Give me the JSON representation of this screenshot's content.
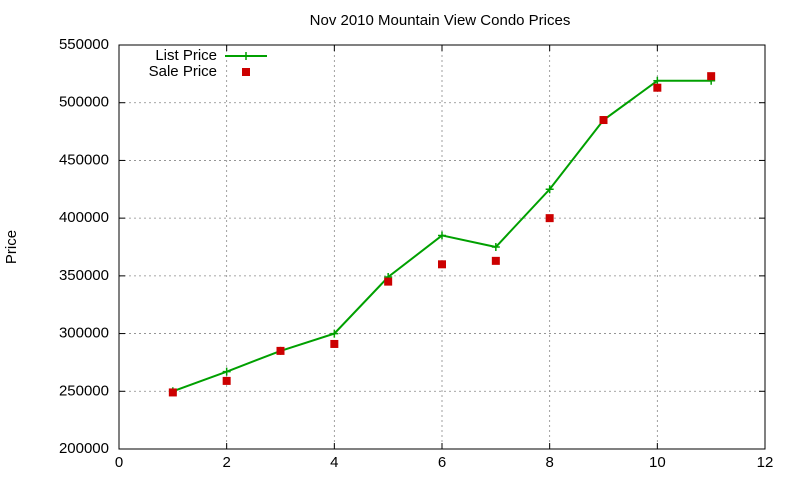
{
  "chart_data": {
    "type": "line",
    "title": "Nov 2010 Mountain View Condo Prices",
    "y_label": "Price",
    "series": [
      {
        "name": "List Price",
        "color": "#00a000",
        "style": "linespoints",
        "x": [
          1,
          2,
          3,
          4,
          5,
          6,
          7,
          8,
          9,
          10,
          11
        ],
        "values": [
          250000,
          267000,
          285000,
          300000,
          349000,
          385000,
          375000,
          425000,
          485000,
          519000,
          519000
        ]
      },
      {
        "name": "Sale Price",
        "color": "#cc0000",
        "style": "points",
        "x": [
          1,
          2,
          3,
          4,
          5,
          6,
          7,
          8,
          9,
          10,
          11
        ],
        "values": [
          249000,
          259000,
          285000,
          291000,
          345000,
          360000,
          363000,
          400000,
          485000,
          513000,
          523000
        ]
      }
    ],
    "xlim": [
      0,
      12
    ],
    "xticks": [
      0,
      2,
      4,
      6,
      8,
      10,
      12
    ],
    "ylim": [
      200000,
      550000
    ],
    "yticks": [
      200000,
      250000,
      300000,
      350000,
      400000,
      450000,
      500000,
      550000
    ],
    "grid": true,
    "legend": "top-left"
  }
}
